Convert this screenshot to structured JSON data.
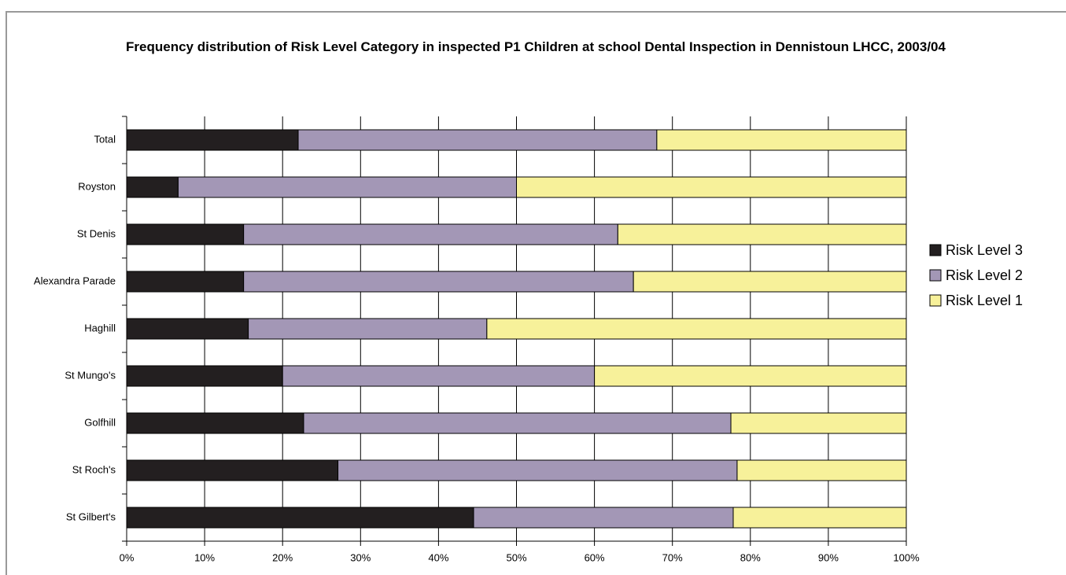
{
  "chart_data": {
    "type": "stacked-barh",
    "title": "Frequency distribution of Risk Level Category in inspected P1 Children at school Dental Inspection in Dennistoun LHCC, 2003/04",
    "categories": [
      "Total",
      "Royston",
      "St Denis",
      "Alexandra Parade",
      "Haghill",
      "St Mungo's",
      "Golfhill",
      "St Roch's",
      "St Gilbert's"
    ],
    "series": [
      {
        "name": "Risk Level 3",
        "color": "#231f20",
        "values": [
          22,
          6.6,
          15,
          15,
          15.6,
          20,
          22.7,
          27.1,
          44.5
        ]
      },
      {
        "name": "Risk Level 2",
        "color": "#a397b6",
        "values": [
          46,
          43.4,
          48,
          50,
          30.6,
          40,
          54.8,
          51.2,
          33.3
        ]
      },
      {
        "name": "Risk Level 1",
        "color": "#f7f19a",
        "values": [
          32,
          50,
          37,
          35,
          53.8,
          40,
          22.5,
          21.7,
          22.2
        ]
      }
    ],
    "xlim": [
      0,
      100
    ],
    "xticks": [
      {
        "value": 0,
        "label": "0%"
      },
      {
        "value": 10,
        "label": "10%"
      },
      {
        "value": 20,
        "label": "20%"
      },
      {
        "value": 30,
        "label": "30%"
      },
      {
        "value": 40,
        "label": "40%"
      },
      {
        "value": 50,
        "label": "50%"
      },
      {
        "value": 60,
        "label": "60%"
      },
      {
        "value": 70,
        "label": "70%"
      },
      {
        "value": 80,
        "label": "80%"
      },
      {
        "value": 90,
        "label": "90%"
      },
      {
        "value": 100,
        "label": "100%"
      }
    ],
    "grid": true,
    "legend": "right"
  }
}
